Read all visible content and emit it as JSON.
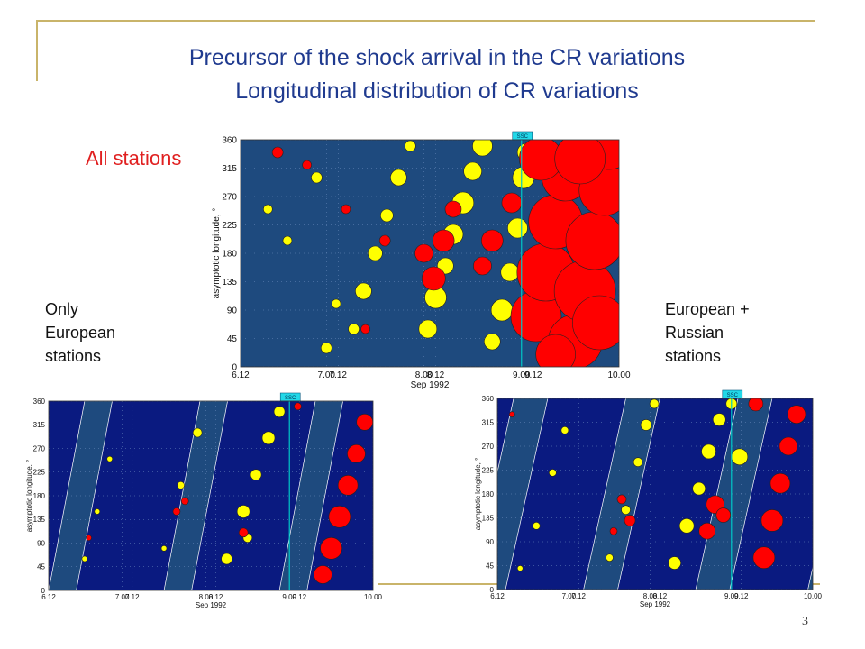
{
  "slide": {
    "title_line1": "Precursor of the shock arrival in the CR variations",
    "title_line2": "Longitudinal distribution of CR variations",
    "label_all": "All stations",
    "label_left": "Only\nEuropean\nstations",
    "label_right": "European +\nRussian\nstations",
    "page_number": "3"
  },
  "colors": {
    "title": "#1f3a8f",
    "label_all": "#e02020",
    "frame_line": "#c9b46a",
    "plot_background": "#0a1a80",
    "band_background": "#1e4a7e",
    "increase_marker": "#ffff00",
    "decrease_marker": "#ff0000",
    "ssc_line": "#00c8c8"
  },
  "chart_data": [
    {
      "type": "scatter",
      "panel": "All stations",
      "xlabel": "Sep 1992",
      "ylabel": "asymptotic longitude, °",
      "x_ticks": [
        "6.12",
        "7.00",
        "7.12",
        "8.00",
        "8.12",
        "9.00",
        "9.12",
        "10.00"
      ],
      "y_ticks": [
        "0",
        "45",
        "90",
        "135",
        "180",
        "225",
        "270",
        "315",
        "360"
      ],
      "ylim": [
        0,
        360
      ],
      "xlim": [
        6.12,
        10.0
      ],
      "annotation": {
        "label": "SSC",
        "x": 9.0
      },
      "series": [
        {
          "name": "",
          "color": "yellow",
          "description": "",
          "points": [
            [
              7.28,
              60,
              6
            ],
            [
              7.38,
              120,
              9
            ],
            [
              7.5,
              180,
              8
            ],
            [
              7.62,
              240,
              7
            ],
            [
              7.74,
              300,
              9
            ],
            [
              7.86,
              350,
              6
            ],
            [
              8.04,
              60,
              10
            ],
            [
              8.12,
              110,
              12
            ],
            [
              8.22,
              160,
              9
            ],
            [
              8.3,
              210,
              11
            ],
            [
              8.4,
              260,
              12
            ],
            [
              8.5,
              310,
              10
            ],
            [
              8.6,
              350,
              11
            ],
            [
              8.7,
              40,
              9
            ],
            [
              8.8,
              90,
              12
            ],
            [
              8.88,
              150,
              10
            ],
            [
              8.96,
              220,
              11
            ],
            [
              9.02,
              300,
              12
            ],
            [
              9.05,
              340,
              10
            ],
            [
              6.6,
              200,
              5
            ],
            [
              6.9,
              300,
              6
            ],
            [
              7.1,
              100,
              5
            ],
            [
              7.0,
              30,
              6
            ],
            [
              6.4,
              250,
              5
            ]
          ]
        },
        {
          "name": "",
          "color": "red",
          "description": "",
          "points": [
            [
              7.4,
              60,
              5
            ],
            [
              7.6,
              200,
              6
            ],
            [
              8.0,
              180,
              10
            ],
            [
              8.1,
              140,
              13
            ],
            [
              8.2,
              200,
              12
            ],
            [
              8.3,
              250,
              9
            ],
            [
              8.6,
              160,
              10
            ],
            [
              8.7,
              200,
              12
            ],
            [
              8.9,
              260,
              11
            ],
            [
              9.15,
              80,
              28
            ],
            [
              9.25,
              150,
              32
            ],
            [
              9.35,
              230,
              30
            ],
            [
              9.45,
              300,
              26
            ],
            [
              9.55,
              40,
              30
            ],
            [
              9.65,
              120,
              34
            ],
            [
              9.75,
              200,
              32
            ],
            [
              9.85,
              280,
              28
            ],
            [
              9.9,
              350,
              26
            ],
            [
              9.35,
              20,
              22
            ],
            [
              9.2,
              330,
              24
            ],
            [
              9.6,
              330,
              28
            ],
            [
              9.8,
              70,
              30
            ],
            [
              6.5,
              340,
              6
            ],
            [
              6.8,
              320,
              5
            ],
            [
              7.2,
              250,
              5
            ]
          ]
        }
      ]
    },
    {
      "type": "scatter",
      "panel": "Only European stations",
      "xlabel": "Sep 1992",
      "ylabel": "asymptotic longitude, °",
      "x_ticks": [
        "6.12",
        "7.00",
        "7.12",
        "8.00",
        "8.12",
        "9.00",
        "9.12",
        "10.00"
      ],
      "y_ticks": [
        "0",
        "45",
        "90",
        "135",
        "180",
        "225",
        "270",
        "315",
        "360"
      ],
      "ylim": [
        0,
        360
      ],
      "xlim": [
        6.12,
        10.0
      ],
      "annotation": {
        "label": "SSC",
        "x": 9.0
      },
      "series": [
        {
          "name": "",
          "color": "yellow",
          "description": "",
          "points": [
            [
              6.55,
              60,
              3
            ],
            [
              6.7,
              150,
              3
            ],
            [
              6.85,
              250,
              3
            ],
            [
              7.5,
              80,
              3
            ],
            [
              7.7,
              200,
              4
            ],
            [
              7.9,
              300,
              5
            ],
            [
              8.25,
              60,
              6
            ],
            [
              8.45,
              150,
              7
            ],
            [
              8.6,
              220,
              6
            ],
            [
              8.75,
              290,
              7
            ],
            [
              8.88,
              340,
              6
            ],
            [
              8.5,
              100,
              5
            ]
          ]
        },
        {
          "name": "",
          "color": "red",
          "description": "",
          "points": [
            [
              6.6,
              100,
              3
            ],
            [
              7.65,
              150,
              4
            ],
            [
              7.75,
              170,
              4
            ],
            [
              8.45,
              110,
              5
            ],
            [
              9.5,
              80,
              12
            ],
            [
              9.6,
              140,
              12
            ],
            [
              9.7,
              200,
              11
            ],
            [
              9.8,
              260,
              10
            ],
            [
              9.9,
              320,
              9
            ],
            [
              9.4,
              30,
              10
            ],
            [
              9.1,
              350,
              4
            ]
          ]
        }
      ]
    },
    {
      "type": "scatter",
      "panel": "European + Russian stations",
      "xlabel": "Sep 1992",
      "ylabel": "asymptotic longitude, °",
      "x_ticks": [
        "6.12",
        "7.00",
        "7.12",
        "8.00",
        "8.12",
        "9.00",
        "9.12",
        "10.00"
      ],
      "y_ticks": [
        "0",
        "45",
        "90",
        "135",
        "180",
        "225",
        "270",
        "315",
        "360"
      ],
      "ylim": [
        0,
        360
      ],
      "xlim": [
        6.12,
        10.0
      ],
      "annotation": {
        "label": "SSC",
        "x": 9.0
      },
      "series": [
        {
          "name": "",
          "color": "yellow",
          "description": "",
          "points": [
            [
              6.4,
              40,
              3
            ],
            [
              6.6,
              120,
              4
            ],
            [
              6.8,
              220,
              4
            ],
            [
              6.95,
              300,
              4
            ],
            [
              7.5,
              60,
              4
            ],
            [
              7.7,
              150,
              5
            ],
            [
              7.85,
              240,
              5
            ],
            [
              7.95,
              310,
              6
            ],
            [
              8.05,
              350,
              5
            ],
            [
              8.3,
              50,
              7
            ],
            [
              8.45,
              120,
              8
            ],
            [
              8.6,
              190,
              7
            ],
            [
              8.72,
              260,
              8
            ],
            [
              8.85,
              320,
              7
            ],
            [
              9.0,
              350,
              6
            ],
            [
              9.1,
              250,
              9
            ]
          ]
        },
        {
          "name": "",
          "color": "red",
          "description": "",
          "points": [
            [
              6.3,
              330,
              3
            ],
            [
              7.55,
              110,
              4
            ],
            [
              7.65,
              170,
              5
            ],
            [
              7.75,
              130,
              6
            ],
            [
              8.7,
              110,
              9
            ],
            [
              8.8,
              160,
              10
            ],
            [
              8.9,
              140,
              8
            ],
            [
              9.4,
              60,
              12
            ],
            [
              9.5,
              130,
              12
            ],
            [
              9.6,
              200,
              11
            ],
            [
              9.7,
              270,
              10
            ],
            [
              9.8,
              330,
              10
            ],
            [
              9.3,
              350,
              8
            ]
          ]
        }
      ]
    }
  ]
}
